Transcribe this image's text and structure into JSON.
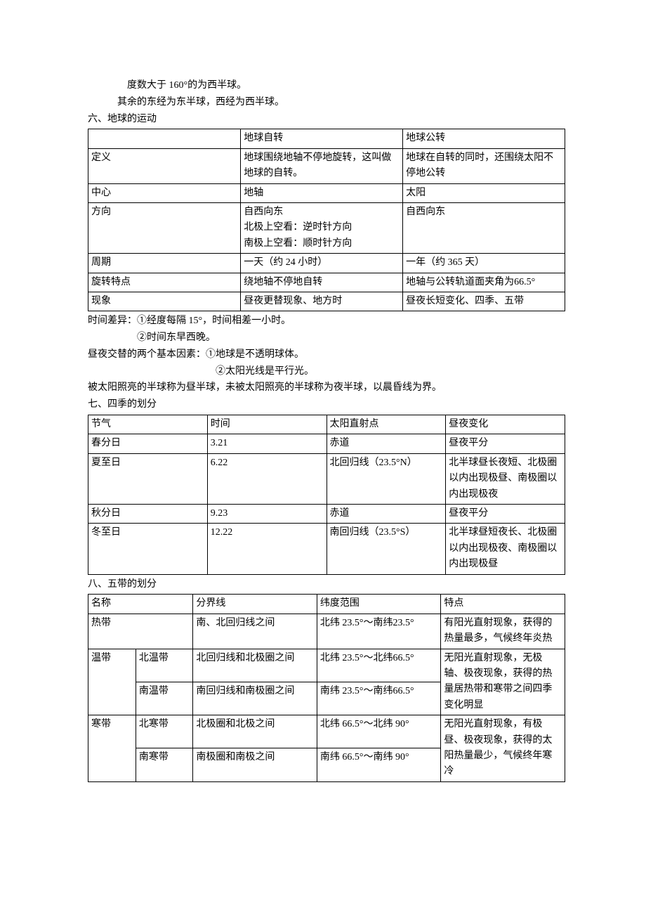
{
  "intro": {
    "line1": "度数大于 160°的为西半球。",
    "line2": "其余的东经为东半球，西经为西半球。"
  },
  "section6_title": "六、地球的运动",
  "table1": {
    "header": [
      "",
      "地球自转",
      "地球公转"
    ],
    "rows": [
      [
        "定义",
        "地球围绕地轴不停地旋转，这叫做地球的自转。",
        "地球在自转的同时，还围绕太阳不停地公转"
      ],
      [
        "中心",
        "地轴",
        "太阳"
      ],
      [
        "方向",
        "自西向东\n北极上空看：逆时针方向\n南极上空看：顺时针方向",
        "自西向东"
      ],
      [
        "周期",
        "一天（约 24 小时）",
        "一年（约 365 天）"
      ],
      [
        "旋转特点",
        "绕地轴不停地自转",
        "地轴与公转轨道面夹角为66.5°"
      ],
      [
        "现象",
        "昼夜更替现象、地方时",
        "昼夜长短变化、四季、五带"
      ]
    ]
  },
  "mid_text": {
    "line1": "时间差异：①经度每隔 15°，时间相差一小时。",
    "line2": "②时间东早西晚。",
    "line3": "昼夜交替的两个基本因素：①地球是不透明球体。",
    "line4": "②太阳光线是平行光。",
    "line5": "被太阳照亮的半球称为昼半球，未被太阳照亮的半球称为夜半球，以晨昏线为界。"
  },
  "section7_title": "七、四季的划分",
  "table2": {
    "header": [
      "节气",
      "时间",
      "太阳直射点",
      "昼夜变化"
    ],
    "rows": [
      [
        "春分日",
        "3.21",
        "赤道",
        "昼夜平分"
      ],
      [
        "夏至日",
        "6.22",
        "北回归线（23.5°N）",
        "北半球昼长夜短、北极圈以内出现极昼、南极圈以内出现极夜"
      ],
      [
        "秋分日",
        "9.23",
        "赤道",
        "昼夜平分"
      ],
      [
        "冬至日",
        "12.22",
        "南回归线（23.5°S）",
        "北半球昼短夜长、北极圈以内出现极夜、南极圈以内出现极昼"
      ]
    ]
  },
  "section8_title": "八、五带的划分",
  "table3": {
    "header": [
      "名称",
      "",
      "分界线",
      "纬度范围",
      "特点"
    ],
    "row_hot": {
      "name": "热带",
      "boundary": "南、北回归线之间",
      "range": "北纬 23.5°～南纬23.5°",
      "feature": "有阳光直射现象，获得的热量最多，气候终年炎热"
    },
    "row_temp": {
      "name": "温带",
      "sub1": "北温带",
      "b1": "北回归线和北极圈之间",
      "r1": "北纬 23.5°～北纬66.5°",
      "sub2": "南温带",
      "b2": "南回归线和南极圈之间",
      "r2": "南纬 23.5°～南纬66.5°",
      "feature": "无阳光直射现象，无极轴、极夜现象，获得的热量居热带和寒带之间四季变化明显"
    },
    "row_cold": {
      "name": "寒带",
      "sub1": "北寒带",
      "b1": "北极圈和北极之间",
      "r1": "北纬 66.5°～北纬 90°",
      "sub2": "南寒带",
      "b2": "南极圈和南极之间",
      "r2": "南纬 66.5°～南纬 90°",
      "feature": "无阳光直射现象，有极昼、极夜现象，获得的太阳热量最少，气候终年寒冷"
    }
  }
}
